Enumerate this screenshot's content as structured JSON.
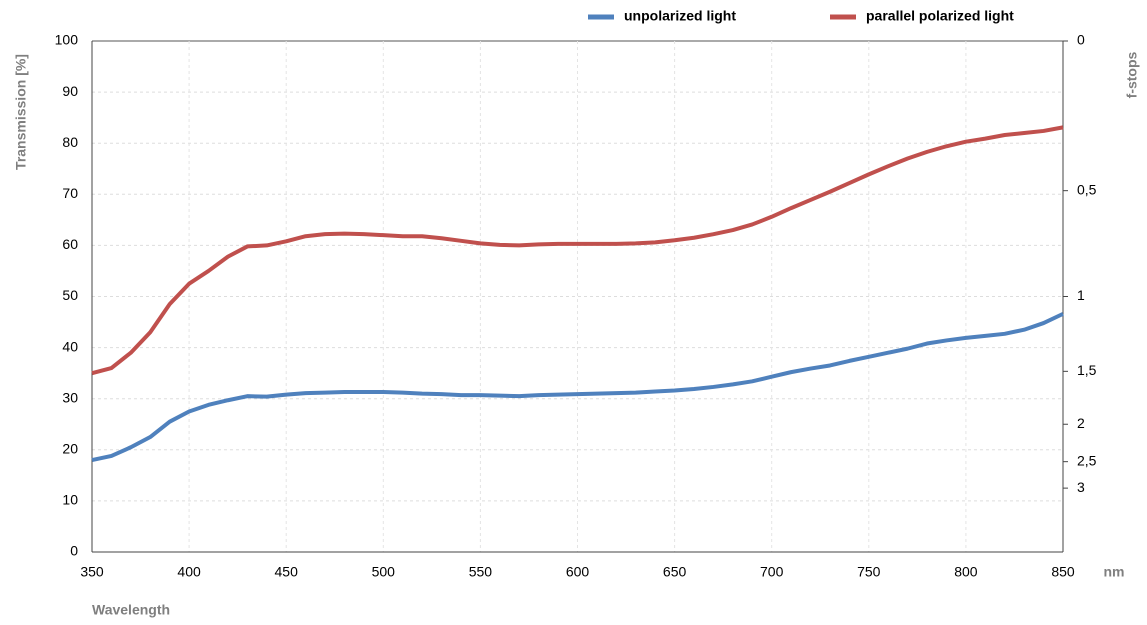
{
  "chart_data": {
    "type": "line",
    "y_label": "Transmission [%]",
    "y2_label": "f-stops",
    "x_label": "Wavelength",
    "x_unit": "nm",
    "x": [
      350,
      360,
      370,
      380,
      390,
      400,
      410,
      420,
      430,
      440,
      450,
      460,
      470,
      480,
      490,
      500,
      510,
      520,
      530,
      540,
      550,
      560,
      570,
      580,
      590,
      600,
      610,
      620,
      630,
      640,
      650,
      660,
      670,
      680,
      690,
      700,
      710,
      720,
      730,
      740,
      750,
      760,
      770,
      780,
      790,
      800,
      810,
      820,
      830,
      840,
      850
    ],
    "series": [
      {
        "name": "unpolarized light",
        "color": "#4f81bd",
        "values": [
          18,
          18.8,
          20.5,
          22.5,
          25.5,
          27.5,
          28.8,
          29.7,
          30.5,
          30.4,
          30.8,
          31.1,
          31.2,
          31.3,
          31.3,
          31.3,
          31.2,
          31.0,
          30.9,
          30.7,
          30.7,
          30.6,
          30.5,
          30.7,
          30.8,
          30.9,
          31.0,
          31.1,
          31.2,
          31.4,
          31.6,
          31.9,
          32.3,
          32.8,
          33.4,
          34.3,
          35.2,
          35.9,
          36.5,
          37.4,
          38.2,
          39.0,
          39.8,
          40.8,
          41.4,
          41.9,
          42.3,
          42.7,
          43.5,
          44.8,
          46.6
        ]
      },
      {
        "name": "parallel polarized light",
        "color": "#c0504d",
        "values": [
          35,
          36,
          39,
          43,
          48.5,
          52.5,
          55,
          57.8,
          59.8,
          60,
          60.8,
          61.8,
          62.2,
          62.3,
          62.2,
          62.0,
          61.8,
          61.8,
          61.4,
          60.9,
          60.4,
          60.1,
          60.0,
          60.2,
          60.3,
          60.3,
          60.3,
          60.3,
          60.4,
          60.6,
          61.0,
          61.5,
          62.2,
          63.0,
          64.1,
          65.6,
          67.3,
          68.9,
          70.5,
          72.2,
          73.9,
          75.5,
          77.0,
          78.3,
          79.4,
          80.3,
          80.9,
          81.6,
          82.0,
          82.4,
          83.1
        ]
      }
    ],
    "xlim": [
      350,
      850
    ],
    "xticks": [
      350,
      400,
      450,
      500,
      550,
      600,
      650,
      700,
      750,
      800,
      850
    ],
    "ylim": [
      0,
      100
    ],
    "yticks": [
      0,
      10,
      20,
      30,
      40,
      50,
      60,
      70,
      80,
      90,
      100
    ],
    "y2scale": "f-stops",
    "y2ticks": [
      0,
      {
        "value": 0.5,
        "label": "0,5"
      },
      1,
      {
        "value": 1.5,
        "label": "1,5"
      },
      2,
      {
        "value": 2.5,
        "label": "2,5"
      },
      3
    ],
    "grid": true,
    "legend": "top-right"
  }
}
